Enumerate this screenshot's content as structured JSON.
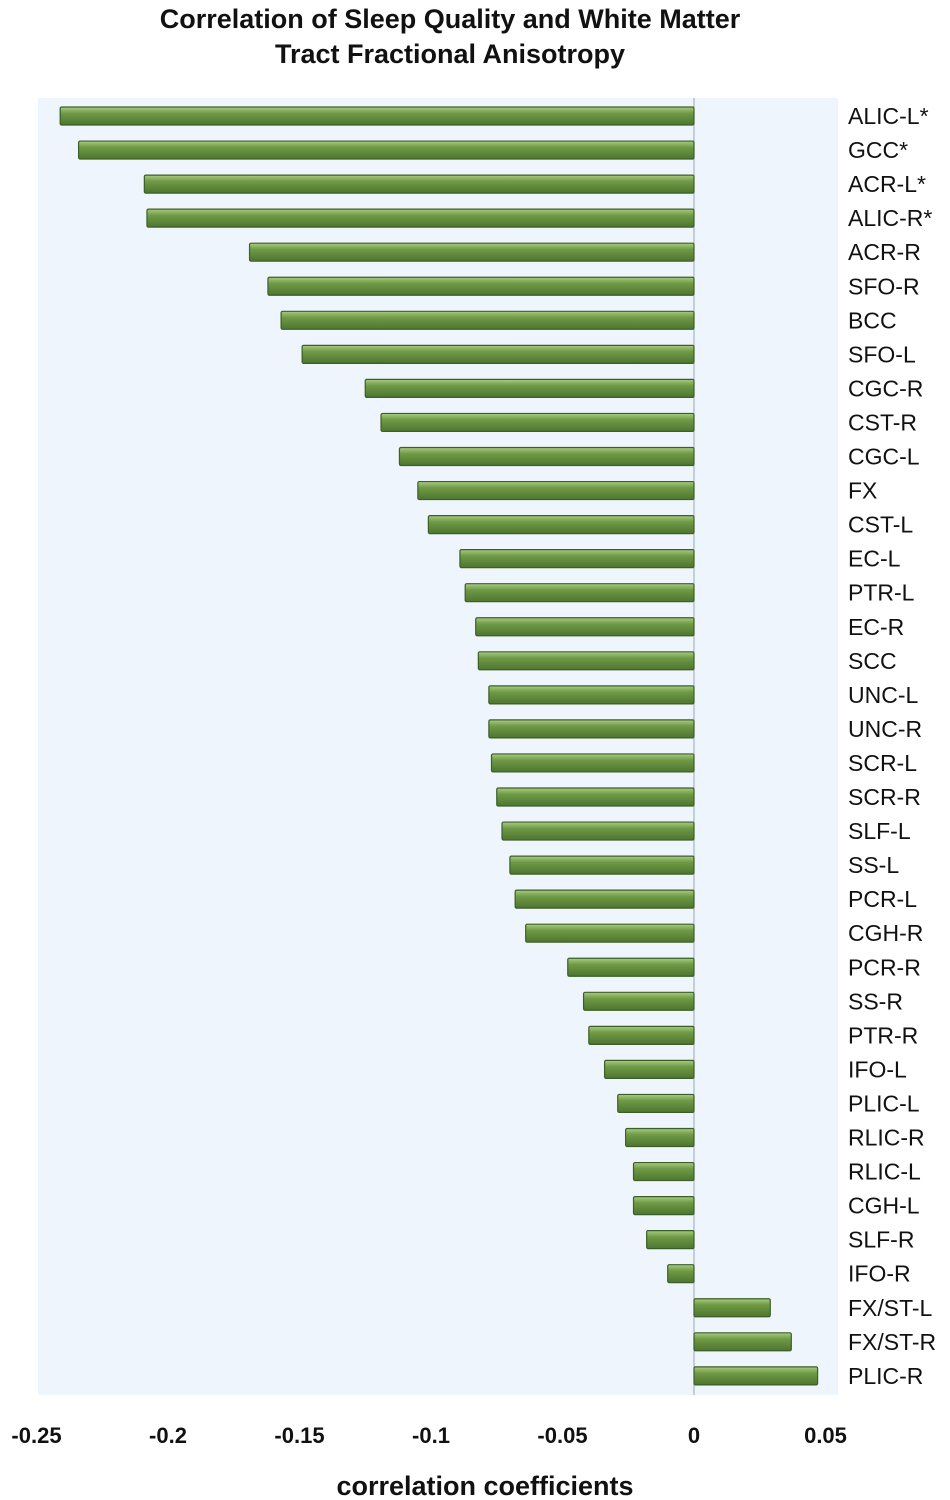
{
  "chart_data": {
    "type": "bar",
    "orientation": "horizontal",
    "title_lines": [
      "Correlation of Sleep Quality and White Matter",
      "Tract Fractional Anisotropy"
    ],
    "xlabel": "correlation coefficients",
    "ylabel": "",
    "xlim": [
      -0.25,
      0.05
    ],
    "xticks": [
      "-0.25",
      "-0.2",
      "-0.15",
      "-0.1",
      "-0.05",
      "0",
      "0.05"
    ],
    "xtick_values": [
      -0.25,
      -0.2,
      -0.15,
      -0.1,
      -0.05,
      0,
      0.05
    ],
    "grid": false,
    "colors": {
      "bar": "#5f8a3a",
      "plot_background": "#eef5fc"
    },
    "categories": [
      "ALIC-L*",
      "GCC*",
      "ACR-L*",
      "ALIC-R*",
      "ACR-R",
      "SFO-R",
      "BCC",
      "SFO-L",
      "CGC-R",
      "CST-R",
      "CGC-L",
      "FX",
      "CST-L",
      "EC-L",
      "PTR-L",
      "EC-R",
      "SCC",
      "UNC-L",
      "UNC-R",
      "SCR-L",
      "SCR-R",
      "SLF-L",
      "SS-L",
      "PCR-L",
      "CGH-R",
      "PCR-R",
      "SS-R",
      "PTR-R",
      "IFO-L",
      "PLIC-L",
      "RLIC-R",
      "RLIC-L",
      "CGH-L",
      "SLF-R",
      "IFO-R",
      "FX/ST-L",
      "FX/ST-R",
      "PLIC-R"
    ],
    "values": [
      -0.241,
      -0.234,
      -0.209,
      -0.208,
      -0.169,
      -0.162,
      -0.157,
      -0.149,
      -0.125,
      -0.119,
      -0.112,
      -0.105,
      -0.101,
      -0.089,
      -0.087,
      -0.083,
      -0.082,
      -0.078,
      -0.078,
      -0.077,
      -0.075,
      -0.073,
      -0.07,
      -0.068,
      -0.064,
      -0.048,
      -0.042,
      -0.04,
      -0.034,
      -0.029,
      -0.026,
      -0.023,
      -0.023,
      -0.018,
      -0.01,
      0.029,
      0.037,
      0.047
    ]
  }
}
